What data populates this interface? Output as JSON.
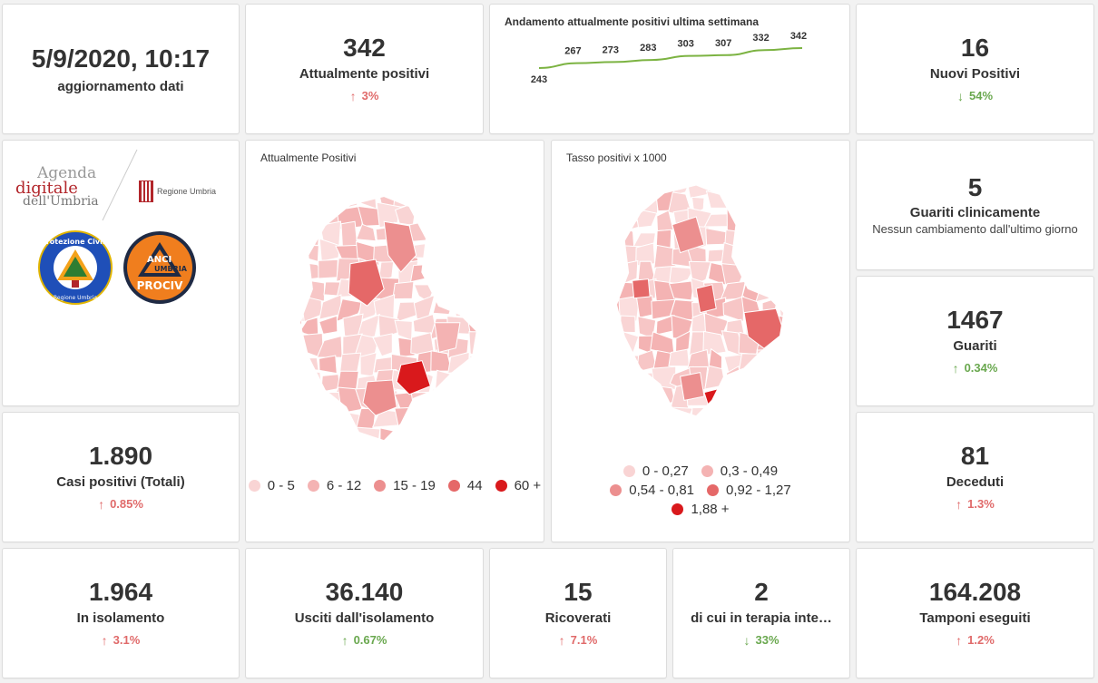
{
  "update": {
    "datetime": "5/9/2020, 10:17",
    "label": "aggiornamento dati"
  },
  "attualmente_positivi": {
    "value": "342",
    "label": "Attualmente positivi",
    "change": "3%",
    "direction": "up"
  },
  "trend": {
    "title": "Andamento attualmente positivi ultima settimana",
    "chart_data": {
      "type": "line",
      "values": [
        243,
        267,
        273,
        283,
        303,
        307,
        332,
        342
      ],
      "labels": [
        "243",
        "267",
        "273",
        "283",
        "303",
        "307",
        "332",
        "342"
      ]
    }
  },
  "nuovi_positivi": {
    "value": "16",
    "label": "Nuovi Positivi",
    "change": "54%",
    "direction": "down"
  },
  "logos": {
    "agenda_line1": "Agenda",
    "agenda_line2": "digitale",
    "agenda_line3": "dell'Umbria",
    "regione": "Regione Umbria",
    "protezione": "Protezione Civile",
    "protezione_sub": "Regione Umbria",
    "anci_top": "ANCI",
    "anci_mid": "UMBRIA",
    "anci_bottom": "PROCIV"
  },
  "map1": {
    "title": "Attualmente Positivi",
    "legend": [
      {
        "label": "0 - 5",
        "color": "#f9d4d4"
      },
      {
        "label": "6 - 12",
        "color": "#f4b3b3"
      },
      {
        "label": "15 - 19",
        "color": "#ec8f8f"
      },
      {
        "label": "44",
        "color": "#e56868"
      },
      {
        "label": "60 +",
        "color": "#d9191c"
      }
    ]
  },
  "map2": {
    "title": "Tasso positivi x 1000",
    "legend": [
      {
        "label": "0 - 0,27",
        "color": "#f9d4d4"
      },
      {
        "label": "0,3 - 0,49",
        "color": "#f4b3b3"
      },
      {
        "label": "0,54 - 0,81",
        "color": "#ec8f8f"
      },
      {
        "label": "0,92 - 1,27",
        "color": "#e56868"
      },
      {
        "label": "1,88 +",
        "color": "#d9191c"
      }
    ]
  },
  "guariti_clinicamente": {
    "value": "5",
    "label": "Guariti clinicamente",
    "sub": "Nessun cambiamento dall'ultimo giorno"
  },
  "guariti": {
    "value": "1467",
    "label": "Guariti",
    "change": "0.34%",
    "direction": "up-good"
  },
  "casi_totali": {
    "value": "1.890",
    "label": "Casi positivi (Totali)",
    "change": "0.85%",
    "direction": "up"
  },
  "deceduti": {
    "value": "81",
    "label": "Deceduti",
    "change": "1.3%",
    "direction": "up"
  },
  "isolamento": {
    "value": "1.964",
    "label": "In isolamento",
    "change": "3.1%",
    "direction": "up"
  },
  "usciti": {
    "value": "36.140",
    "label": "Usciti dall'isolamento",
    "change": "0.67%",
    "direction": "up-good"
  },
  "ricoverati": {
    "value": "15",
    "label": "Ricoverati",
    "change": "7.1%",
    "direction": "up"
  },
  "terapia": {
    "value": "2",
    "label": "di cui in terapia inte…",
    "change": "33%",
    "direction": "down"
  },
  "tamponi": {
    "value": "164.208",
    "label": "Tamponi eseguiti",
    "change": "1.2%",
    "direction": "up"
  },
  "colors": {
    "up": "#e06a6a",
    "down": "#6aa84f",
    "line": "#7cb342"
  }
}
